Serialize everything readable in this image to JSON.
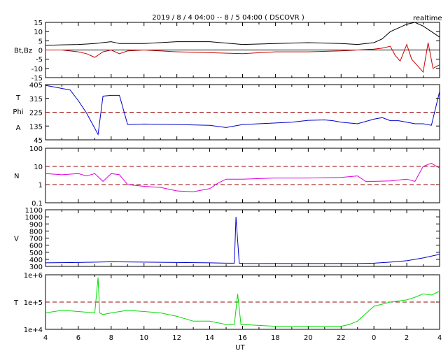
{
  "title": "2019 / 8 / 4   04:00 -- 8 / 5  04:00 ( DSCOVR )",
  "realtime_label": "realtime",
  "x_axis_label": "UT",
  "x_ticks": [
    "4",
    "6",
    "8",
    "10",
    "12",
    "14",
    "16",
    "18",
    "20",
    "22",
    "0",
    "2",
    "4"
  ],
  "colors": {
    "bt": "#000000",
    "bz": "#cc0000",
    "phi": "#0000cc",
    "density": "#dd00dd",
    "speed": "#0000cc",
    "temperature": "#00dd00",
    "reference": "#990000"
  },
  "panels": [
    {
      "id": "mag",
      "ylabel": "Bt,Bz",
      "ytick_labels": [
        "15",
        "10",
        "5",
        "0",
        "-5",
        "-10",
        "-15"
      ],
      "ylim": [
        -15,
        15
      ],
      "zero_line": 0
    },
    {
      "id": "phi",
      "ylabel_lines": [
        "T",
        "Phi",
        "A"
      ],
      "ytick_labels": [
        "405",
        "315",
        "225",
        "135",
        "45"
      ],
      "ylim": [
        45,
        405
      ],
      "reference_line": 225
    },
    {
      "id": "density",
      "ylabel": "N",
      "ytick_labels": [
        "100",
        "10",
        "1",
        "0.1"
      ],
      "ylim": [
        0.1,
        100
      ],
      "scale": "log",
      "reference_lines": [
        10,
        1
      ]
    },
    {
      "id": "speed",
      "ylabel": "V",
      "ytick_labels": [
        "1100",
        "1000",
        "900",
        "800",
        "700",
        "600",
        "500",
        "400",
        "300"
      ],
      "ylim": [
        300,
        1100
      ]
    },
    {
      "id": "temp",
      "ylabel": "T",
      "ytick_labels": [
        "1e+6",
        "1e+5",
        "1e+4"
      ],
      "ylim": [
        10000,
        1000000
      ],
      "scale": "log",
      "reference_line": 100000
    }
  ],
  "chart_data": {
    "type": "line",
    "x_unit": "UT hours since 2019-08-04 04:00",
    "xlim": [
      0,
      24
    ],
    "series": [
      {
        "panel": "mag",
        "color_key": "bt",
        "x": [
          0,
          1,
          2,
          3,
          4,
          4.5,
          5,
          6,
          8,
          10,
          12,
          14,
          16,
          18,
          19,
          20,
          20.5,
          21,
          21.5,
          22,
          22.5,
          23,
          23.5,
          24
        ],
        "y": [
          2.5,
          2.8,
          3,
          3.5,
          4.5,
          3.5,
          3.5,
          3.5,
          4.5,
          4.5,
          3,
          3.5,
          4,
          3.5,
          3,
          4,
          6,
          10,
          12,
          14,
          15,
          13,
          10,
          7
        ]
      },
      {
        "panel": "mag",
        "color_key": "bz",
        "x": [
          0,
          1,
          2,
          2.5,
          3,
          3.5,
          4,
          4.5,
          5,
          6,
          8,
          10,
          12,
          14,
          16,
          18,
          19,
          20,
          20.5,
          21,
          21.3,
          21.6,
          22,
          22.3,
          22.6,
          23,
          23.3,
          23.6,
          24
        ],
        "y": [
          0,
          0,
          -1,
          -2,
          -4,
          -1,
          0,
          -2,
          -0.5,
          0,
          -1,
          -1.5,
          -2,
          -1,
          -1,
          -0.5,
          0,
          0.5,
          1,
          2,
          -3,
          -6,
          3,
          -5,
          -8,
          -12,
          4,
          -10,
          -8
        ]
      },
      {
        "panel": "phi",
        "color_key": "phi",
        "x": [
          0,
          0.5,
          1,
          1.5,
          2,
          2.5,
          3,
          3.2,
          3.5,
          4,
          4.5,
          5,
          6,
          8,
          10,
          11,
          12,
          13,
          14,
          15,
          16,
          17,
          17.5,
          18,
          19,
          20,
          20.5,
          21,
          21.5,
          22,
          22.5,
          23,
          23.5,
          24
        ],
        "y": [
          400,
          390,
          380,
          370,
          300,
          220,
          120,
          80,
          330,
          335,
          335,
          145,
          148,
          145,
          140,
          125,
          145,
          150,
          155,
          160,
          172,
          175,
          170,
          160,
          150,
          180,
          190,
          170,
          170,
          160,
          150,
          150,
          140,
          360
        ]
      },
      {
        "panel": "density",
        "color_key": "density",
        "x": [
          0,
          1,
          2,
          2.5,
          3,
          3.5,
          4,
          4.5,
          5,
          6,
          7,
          8,
          9,
          10,
          10.5,
          11,
          12,
          14,
          16,
          18,
          19,
          19.5,
          20,
          21,
          22,
          22.5,
          23,
          23.5,
          24
        ],
        "y": [
          4,
          3.5,
          4,
          3,
          4,
          1.5,
          4,
          3.5,
          1,
          0.8,
          0.7,
          0.45,
          0.4,
          0.6,
          1.2,
          2,
          2,
          2.3,
          2.3,
          2.5,
          3,
          1.5,
          1.5,
          1.6,
          2,
          1.5,
          10,
          15,
          8
        ]
      },
      {
        "panel": "speed",
        "color_key": "speed",
        "x": [
          0,
          2,
          4,
          6,
          8,
          10,
          11,
          11.5,
          11.6,
          11.8,
          12,
          14,
          16,
          18,
          19,
          20,
          21,
          22,
          23,
          24
        ],
        "y": [
          350,
          355,
          365,
          360,
          355,
          350,
          345,
          345,
          1000,
          345,
          342,
          340,
          340,
          340,
          340,
          345,
          360,
          380,
          420,
          470
        ]
      },
      {
        "panel": "temp",
        "color_key": "temperature",
        "x": [
          0,
          1,
          2,
          3,
          3.2,
          3.3,
          3.5,
          4,
          5,
          6,
          7,
          8,
          9,
          10,
          11,
          11.5,
          11.7,
          11.9,
          12,
          14,
          16,
          18,
          18.5,
          19,
          20,
          21,
          22,
          22.5,
          23,
          23.5,
          24
        ],
        "y": [
          40000,
          50000,
          45000,
          40000,
          800000,
          40000,
          35000,
          40000,
          50000,
          45000,
          40000,
          30000,
          20000,
          20000,
          15000,
          15000,
          200000,
          15000,
          15000,
          13000,
          13000,
          13000,
          15000,
          20000,
          70000,
          100000,
          120000,
          150000,
          200000,
          180000,
          250000
        ]
      }
    ]
  }
}
